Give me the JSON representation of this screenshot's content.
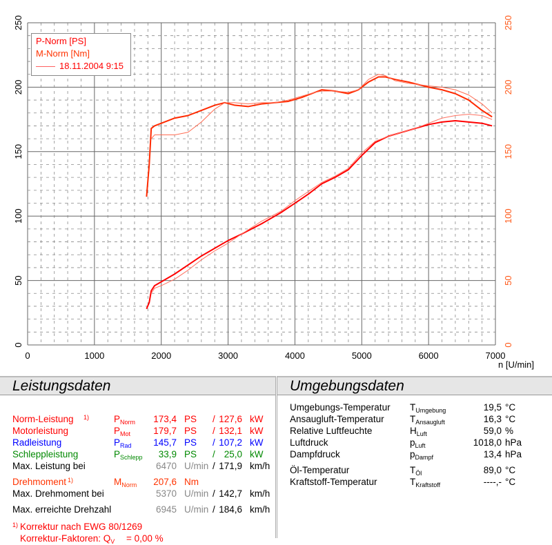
{
  "chart_data": {
    "type": "line",
    "xlabel": "n [U/min]",
    "xlim": [
      0,
      7000
    ],
    "ylim": [
      0,
      250
    ],
    "x_ticks": [
      "0",
      "1000",
      "2000",
      "3000",
      "4000",
      "5000",
      "6000",
      "7000"
    ],
    "y_ticks_left": [
      "0",
      "50",
      "100",
      "150",
      "200",
      "250"
    ],
    "y_ticks_right": [
      "0",
      "50",
      "100",
      "150",
      "200",
      "250"
    ],
    "grid": true,
    "legend_position": "top-left",
    "legend": {
      "p_label": "P-Norm [PS]",
      "m_label": "M-Norm [Nm]",
      "run_label": "18.11.2004 9:15"
    },
    "series": [
      {
        "name": "M-Norm [Nm]",
        "color": "#ff2a00",
        "width": 2,
        "x": [
          1780,
          1820,
          1850,
          1900,
          2000,
          2200,
          2400,
          2600,
          2800,
          2950,
          3100,
          3300,
          3500,
          3700,
          3900,
          4100,
          4300,
          4400,
          4600,
          4800,
          4950,
          5100,
          5250,
          5350,
          5500,
          5700,
          6000,
          6200,
          6400,
          6600,
          6800,
          6950
        ],
        "y": [
          115,
          140,
          168,
          170,
          172,
          176,
          178,
          182,
          186,
          188,
          186,
          185,
          187,
          188,
          189,
          192,
          196,
          198,
          197,
          195,
          198,
          204,
          208,
          208,
          206,
          204,
          200,
          198,
          195,
          190,
          182,
          177
        ]
      },
      {
        "name": "M-Norm run 2",
        "color": "#ff6a50",
        "width": 1,
        "x": [
          1850,
          1900,
          2000,
          2200,
          2400,
          2600,
          2800,
          2950,
          3100,
          3300,
          3500,
          3700,
          3900,
          4100,
          4300,
          4400,
          4600,
          4800,
          4950,
          5100,
          5250,
          5350,
          5500,
          5700,
          6000,
          6200,
          6400,
          6600,
          6800,
          6950
        ],
        "y": [
          160,
          163,
          163,
          163,
          165,
          173,
          183,
          188,
          188,
          187,
          188,
          188,
          190,
          193,
          196,
          197,
          197,
          196,
          198,
          206,
          210,
          209,
          205,
          203,
          201,
          200,
          198,
          194,
          187,
          180
        ]
      },
      {
        "name": "P-Norm [PS]",
        "color": "#ff0000",
        "width": 2,
        "x": [
          1780,
          1820,
          1850,
          1900,
          2000,
          2200,
          2400,
          2600,
          2800,
          3000,
          3200,
          3500,
          3800,
          4000,
          4200,
          4400,
          4600,
          4800,
          5000,
          5200,
          5400,
          5600,
          5800,
          6000,
          6200,
          6400,
          6600,
          6800,
          6950
        ],
        "y": [
          28,
          33,
          42,
          46,
          49,
          55,
          62,
          69,
          75,
          81,
          86,
          94,
          103,
          110,
          117,
          125,
          130,
          136,
          147,
          157,
          162,
          165,
          168,
          171,
          173,
          174,
          173,
          172,
          170
        ]
      },
      {
        "name": "P-Norm run 2",
        "color": "#ff7060",
        "width": 1,
        "x": [
          1850,
          1900,
          2000,
          2200,
          2400,
          2600,
          2800,
          3000,
          3200,
          3500,
          3800,
          4000,
          4200,
          4400,
          4600,
          4800,
          5000,
          5200,
          5400,
          5600,
          5800,
          6000,
          6200,
          6400,
          6600,
          6800,
          6950
        ],
        "y": [
          40,
          44,
          46,
          51,
          58,
          66,
          73,
          79,
          86,
          96,
          104,
          112,
          119,
          126,
          131,
          137,
          149,
          158,
          162,
          165,
          168,
          172,
          176,
          178,
          179,
          178,
          175
        ]
      }
    ]
  },
  "left": {
    "title": "Leistungsdaten",
    "rows": [
      {
        "label": "Norm-Leistung",
        "note": "1)",
        "sym": "P",
        "sub": "Norm",
        "v1": "173,4",
        "u1": "PS",
        "sep": "/",
        "v2": "127,6",
        "u2": "kW"
      },
      {
        "label": "Motorleistung",
        "sym": "P",
        "sub": "Mot",
        "v1": "179,7",
        "u1": "PS",
        "sep": "/",
        "v2": "132,1",
        "u2": "kW"
      },
      {
        "label": "Radleistung",
        "sym": "P",
        "sub": "Rad",
        "v1": "145,7",
        "u1": "PS",
        "sep": "/",
        "v2": "107,2",
        "u2": "kW"
      },
      {
        "label": "Schleppleistung",
        "sym": "P",
        "sub": "Schlepp",
        "v1": "33,9",
        "u1": "PS",
        "sep": "/",
        "v2": "25,0",
        "u2": "kW"
      },
      {
        "label": "Max. Leistung bei",
        "v1": "6470",
        "u1": "U/min",
        "sep": "/",
        "v2": "171,9",
        "u2": "km/h"
      },
      {
        "label": "Drehmoment",
        "note": "1)",
        "sym": "M",
        "sub": "Norm",
        "v1": "207,6",
        "u1": "Nm"
      },
      {
        "label": "Max. Drehmoment bei",
        "v1": "5370",
        "u1": "U/min",
        "sep": "/",
        "v2": "142,7",
        "u2": "km/h"
      },
      {
        "label": "Max. erreichte Drehzahl",
        "v1": "6945",
        "u1": "U/min",
        "sep": "/",
        "v2": "184,6",
        "u2": "km/h"
      }
    ],
    "footnote_mark": "1)",
    "footnote1": "Korrektur nach EWG 80/1269",
    "footnote2": "Korrektur-Faktoren: Q",
    "footnote2_sub": "V",
    "footnote2_val": "=    0,00 %"
  },
  "right": {
    "title": "Umgebungsdaten",
    "rows": [
      {
        "label": "Umgebungs-Temperatur",
        "sym": "T",
        "sub": "Umgebung",
        "v": "19,5",
        "u": "°C"
      },
      {
        "label": "Ansaugluft-Temperatur",
        "sym": "T",
        "sub": "Ansaugluft",
        "v": "16,3",
        "u": "°C"
      },
      {
        "label": "Relative Luftfeuchte",
        "sym": "H",
        "sub": "Luft",
        "v": "59,0",
        "u": "%"
      },
      {
        "label": "Luftdruck",
        "sym": "p",
        "sub": "Luft",
        "v": "1018,0",
        "u": "hPa"
      },
      {
        "label": "Dampfdruck",
        "sym": "p",
        "sub": "Dampf",
        "v": "13,4",
        "u": "hPa"
      },
      {
        "label": "Öl-Temperatur",
        "sym": "T",
        "sub": "Öl",
        "v": "89,0",
        "u": "°C"
      },
      {
        "label": "Kraftstoff-Temperatur",
        "sym": "T",
        "sub": "Kraftstoff",
        "v": "----,-",
        "u": "°C"
      }
    ]
  }
}
